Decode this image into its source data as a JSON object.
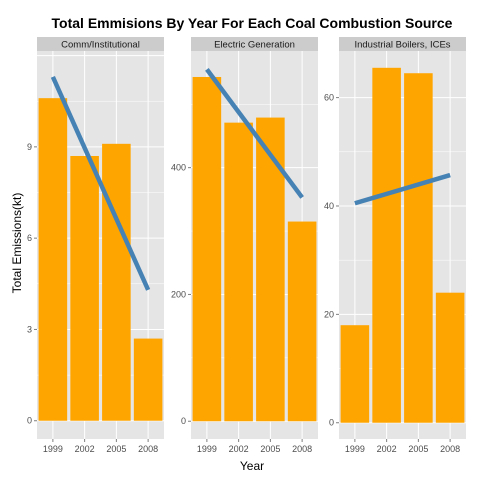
{
  "chart_data": {
    "type": "bar",
    "title": "Total Emmisions By Year For Each Coal Combustion Source",
    "xlabel": "Year",
    "ylabel": "Total Emissions(kt)",
    "categories": [
      "1999",
      "2002",
      "2005",
      "2008"
    ],
    "grid": true,
    "colors": {
      "bar": "#FFA500",
      "trend": "#4682B4",
      "panel_bg": "#E5E5E5",
      "strip_bg": "#CCCCCC",
      "grid": "#FFFFFF"
    },
    "panels": [
      {
        "name": "Comm/Institutional",
        "values": [
          10.6,
          8.7,
          9.1,
          2.7
        ],
        "trend": [
          11.3,
          4.3
        ],
        "yticks": [
          0,
          3,
          6,
          9
        ],
        "ylim": [
          -0.6,
          12.15
        ]
      },
      {
        "name": "Electric Generation",
        "values": [
          543,
          471,
          479,
          315
        ],
        "trend": [
          555,
          353
        ],
        "yticks": [
          0,
          200,
          400
        ],
        "ylim": [
          -28,
          584
        ]
      },
      {
        "name": "Industrial Boilers, ICEs",
        "values": [
          18,
          65.5,
          64.5,
          24
        ],
        "trend": [
          40.5,
          45.7
        ],
        "yticks": [
          0,
          20,
          40,
          60
        ],
        "ylim": [
          -3,
          68.6
        ]
      }
    ]
  }
}
